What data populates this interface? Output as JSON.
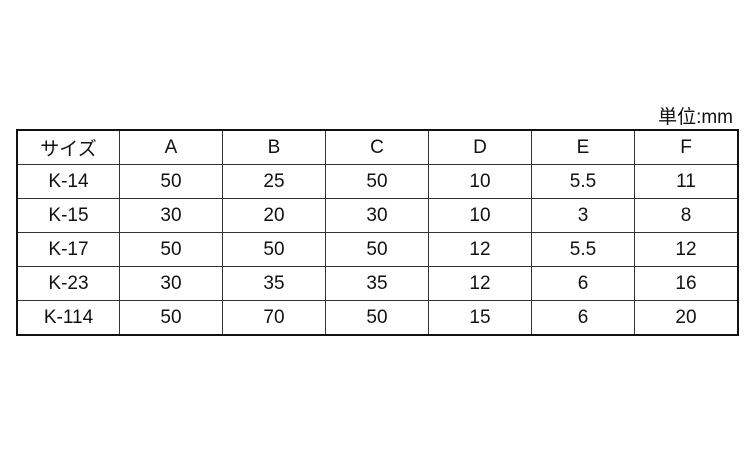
{
  "unit_label": "単位:mm",
  "table": {
    "headers": [
      "サイズ",
      "A",
      "B",
      "C",
      "D",
      "E",
      "F"
    ],
    "rows": [
      [
        "K-14",
        "50",
        "25",
        "50",
        "10",
        "5.5",
        "11"
      ],
      [
        "K-15",
        "30",
        "20",
        "30",
        "10",
        "3",
        "8"
      ],
      [
        "K-17",
        "50",
        "50",
        "50",
        "12",
        "5.5",
        "12"
      ],
      [
        "K-23",
        "30",
        "35",
        "35",
        "12",
        "6",
        "16"
      ],
      [
        "K-114",
        "50",
        "70",
        "50",
        "15",
        "6",
        "20"
      ]
    ]
  }
}
